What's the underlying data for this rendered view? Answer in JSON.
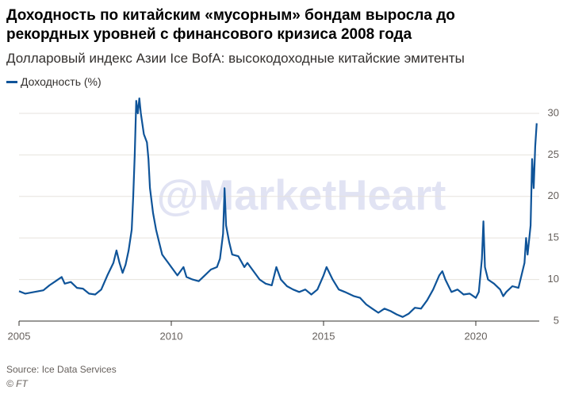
{
  "chart_data": {
    "type": "line",
    "title": "Доходность по китайским «мусорным» бондам выросла до рекордных уровней с финансового кризиса 2008 года",
    "subtitle": "Долларовый индекс Азии Ice BofA: высокодоходные китайские эмитенты",
    "source": "Source: Ice Data Services",
    "credit": "© FT",
    "watermark": "@MarketHeart",
    "legend": "top-left",
    "grid": true,
    "xlim": [
      2005,
      2022.3
    ],
    "xticks": [
      2005,
      2010,
      2015,
      2020
    ],
    "ylim": [
      5,
      32
    ],
    "yticks": [
      5,
      10,
      15,
      20,
      25,
      30
    ],
    "x": [
      2005.0,
      2005.2,
      2005.5,
      2005.8,
      2006.0,
      2006.2,
      2006.4,
      2006.5,
      2006.7,
      2006.9,
      2007.1,
      2007.3,
      2007.5,
      2007.7,
      2007.9,
      2008.1,
      2008.2,
      2008.3,
      2008.4,
      2008.5,
      2008.6,
      2008.7,
      2008.75,
      2008.8,
      2008.85,
      2008.9,
      2008.95,
      2009.0,
      2009.1,
      2009.2,
      2009.25,
      2009.3,
      2009.4,
      2009.5,
      2009.6,
      2009.7,
      2009.8,
      2009.9,
      2010.0,
      2010.2,
      2010.4,
      2010.5,
      2010.7,
      2010.9,
      2011.1,
      2011.3,
      2011.5,
      2011.6,
      2011.7,
      2011.75,
      2011.8,
      2011.9,
      2012.0,
      2012.2,
      2012.4,
      2012.5,
      2012.7,
      2012.9,
      2013.1,
      2013.3,
      2013.45,
      2013.6,
      2013.8,
      2014.0,
      2014.2,
      2014.4,
      2014.6,
      2014.8,
      2015.0,
      2015.1,
      2015.3,
      2015.5,
      2015.7,
      2016.0,
      2016.2,
      2016.4,
      2016.6,
      2016.8,
      2017.0,
      2017.2,
      2017.4,
      2017.6,
      2017.8,
      2018.0,
      2018.2,
      2018.4,
      2018.6,
      2018.8,
      2018.9,
      2019.0,
      2019.2,
      2019.4,
      2019.6,
      2019.8,
      2020.0,
      2020.1,
      2020.2,
      2020.25,
      2020.3,
      2020.4,
      2020.6,
      2020.8,
      2020.9,
      2021.0,
      2021.2,
      2021.4,
      2021.5,
      2021.6,
      2021.65,
      2021.7,
      2021.8,
      2021.85,
      2021.9,
      2021.95,
      2022.0
    ],
    "series": [
      {
        "name": "Доходность (%)",
        "color": "#0f5499",
        "values": [
          8.6,
          8.3,
          8.5,
          8.7,
          9.3,
          9.8,
          10.3,
          9.5,
          9.7,
          9.0,
          8.9,
          8.3,
          8.2,
          8.8,
          10.5,
          12.0,
          13.5,
          12.0,
          10.8,
          11.8,
          13.5,
          16.0,
          20.0,
          25.0,
          31.5,
          30.0,
          31.8,
          30.0,
          27.5,
          26.5,
          24.5,
          21.0,
          18.0,
          16.0,
          14.5,
          13.0,
          12.5,
          12.0,
          11.5,
          10.5,
          11.5,
          10.3,
          10.0,
          9.8,
          10.5,
          11.2,
          11.5,
          12.5,
          15.5,
          21.0,
          16.5,
          14.5,
          13.0,
          12.8,
          11.5,
          12.0,
          11.0,
          10.0,
          9.5,
          9.3,
          11.5,
          10.0,
          9.2,
          8.8,
          8.5,
          8.8,
          8.2,
          8.8,
          10.5,
          11.5,
          10.0,
          8.8,
          8.5,
          8.0,
          7.8,
          7.0,
          6.5,
          6.0,
          6.5,
          6.2,
          5.8,
          5.5,
          5.9,
          6.6,
          6.5,
          7.5,
          8.8,
          10.5,
          11.0,
          10.0,
          8.5,
          8.8,
          8.2,
          8.3,
          7.8,
          8.5,
          12.5,
          17.0,
          11.5,
          10.0,
          9.5,
          8.8,
          8.0,
          8.5,
          9.2,
          9.0,
          10.5,
          12.0,
          15.0,
          13.0,
          16.5,
          24.5,
          21.0,
          26.0,
          28.8
        ]
      }
    ]
  }
}
